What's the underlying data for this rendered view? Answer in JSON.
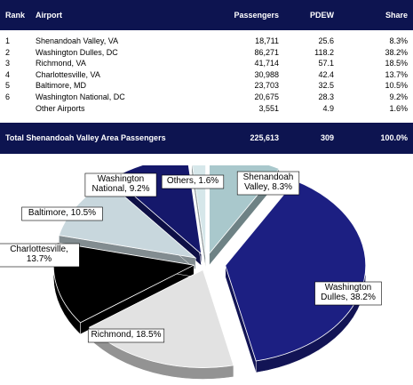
{
  "table": {
    "headers": [
      "Rank",
      "Airport",
      "Passengers",
      "PDEW",
      "Share"
    ],
    "rows": [
      [
        "1",
        "Shenandoah Valley, VA",
        "18,711",
        "25.6",
        "8.3%"
      ],
      [
        "2",
        "Washington Dulles, DC",
        "86,271",
        "118.2",
        "38.2%"
      ],
      [
        "3",
        "Richmond, VA",
        "41,714",
        "57.1",
        "18.5%"
      ],
      [
        "4",
        "Charlottesville, VA",
        "30,988",
        "42.4",
        "13.7%"
      ],
      [
        "5",
        "Baltimore, MD",
        "23,703",
        "32.5",
        "10.5%"
      ],
      [
        "6",
        "Washington National, DC",
        "20,675",
        "28.3",
        "9.2%"
      ],
      [
        "",
        "Other Airports",
        "3,551",
        "4.9",
        "1.6%"
      ]
    ],
    "total": [
      "Total Shenandoah Valley Area Passengers",
      "225,613",
      "309",
      "100.0%"
    ]
  },
  "chart_data": {
    "type": "pie",
    "title": "",
    "slices": [
      {
        "label": "Shenandoah Valley",
        "value": 8.3,
        "color": "#a9c8cc"
      },
      {
        "label": "Washington Dulles",
        "value": 38.2,
        "color": "#1c1f82"
      },
      {
        "label": "Richmond",
        "value": 18.5,
        "color": "#e2e2e2"
      },
      {
        "label": "Charlottesville",
        "value": 13.7,
        "color": "#000000"
      },
      {
        "label": "Baltimore",
        "value": 10.5,
        "color": "#c8d7dd"
      },
      {
        "label": "Washington National",
        "value": 9.2,
        "color": "#15186b"
      },
      {
        "label": "Others",
        "value": 1.6,
        "color": "#d6e7ea"
      }
    ],
    "labels": [
      {
        "lines": [
          "Shenandoah",
          "Valley, 8.3%"
        ]
      },
      {
        "lines": [
          "Washington",
          "Dulles, 38.2%"
        ]
      },
      {
        "lines": [
          "Richmond, 18.5%"
        ]
      },
      {
        "lines": [
          "Charlottesville,",
          "13.7%"
        ]
      },
      {
        "lines": [
          "Baltimore, 10.5%"
        ]
      },
      {
        "lines": [
          "Washington",
          "National, 9.2%"
        ]
      },
      {
        "lines": [
          "Others, 1.6%"
        ]
      }
    ],
    "style": "3d-exploded"
  }
}
